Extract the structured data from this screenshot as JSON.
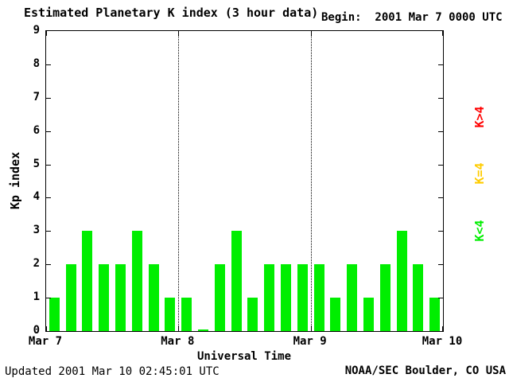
{
  "begin_label": "Begin:  2001 Mar 7 0000 UTC",
  "footer": {
    "updated": "Updated 2001 Mar 10 02:45:01 UTC",
    "credit": "NOAA/SEC Boulder, CO USA"
  },
  "chart_data": {
    "type": "bar",
    "title": "Estimated Planetary K index (3 hour data)",
    "ylabel": "Kp index",
    "xlabel": "Universal Time",
    "ylim": [
      0,
      9
    ],
    "y_ticks": [
      0,
      1,
      2,
      3,
      4,
      5,
      6,
      7,
      8,
      9
    ],
    "bin_hours": 3,
    "x_day_labels": [
      "Mar 7",
      "Mar 8",
      "Mar 9",
      "Mar 10"
    ],
    "gridlines_days": [
      "Mar 8",
      "Mar 9"
    ],
    "bar_color": "#00ee00",
    "axis_color": "#000000",
    "background_color": "#ffffff",
    "values": [
      1,
      2,
      3,
      2,
      2,
      3,
      2,
      1,
      1,
      0,
      2,
      3,
      1,
      2,
      2,
      2,
      2,
      1,
      2,
      1,
      2,
      3,
      2,
      1
    ],
    "legend": [
      {
        "label": "K>4",
        "color": "#ff0000"
      },
      {
        "label": "K=4",
        "color": "#ffcc00"
      },
      {
        "label": "K<4",
        "color": "#00ee00"
      }
    ]
  }
}
